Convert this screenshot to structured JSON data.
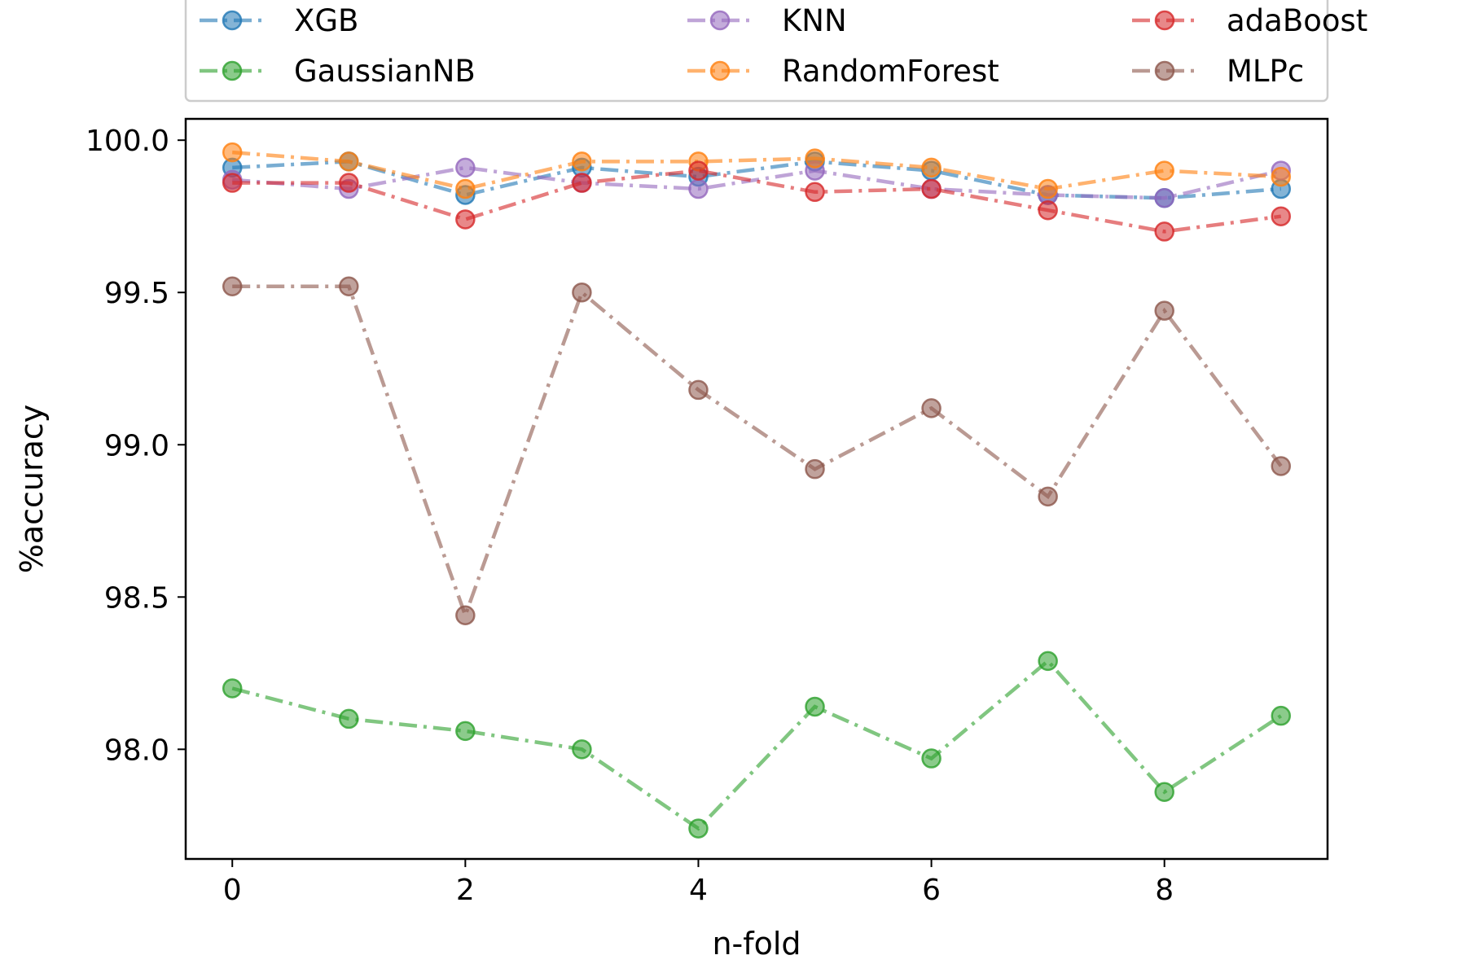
{
  "chart_data": {
    "type": "line",
    "title": "",
    "xlabel": "n-fold",
    "ylabel": "%accuracy",
    "xlim": [
      -0.4,
      9.4
    ],
    "ylim": [
      97.64,
      100.07
    ],
    "xticks": [
      0,
      2,
      4,
      6,
      8
    ],
    "yticks": [
      98.0,
      98.5,
      99.0,
      99.5,
      100.0
    ],
    "ytick_labels": [
      "98.0",
      "98.5",
      "99.0",
      "99.5",
      "100.0"
    ],
    "legend_position": "top",
    "grid": false,
    "x": [
      0,
      1,
      2,
      3,
      4,
      5,
      6,
      7,
      8,
      9
    ],
    "series": [
      {
        "name": "XGB",
        "color": "#1f77b4",
        "dash": "dashdot",
        "values": [
          99.91,
          99.93,
          99.82,
          99.91,
          99.88,
          99.93,
          99.9,
          99.82,
          99.81,
          99.84
        ]
      },
      {
        "name": "GaussianNB",
        "color": "#2ca02c",
        "dash": "dashdot",
        "values": [
          98.2,
          98.1,
          98.06,
          98.0,
          97.74,
          98.14,
          97.97,
          98.29,
          97.86,
          98.11
        ]
      },
      {
        "name": "KNN",
        "color": "#9467bd",
        "dash": "dashdot",
        "values": [
          99.87,
          99.84,
          99.91,
          99.86,
          99.84,
          99.9,
          99.84,
          99.82,
          99.81,
          99.9
        ]
      },
      {
        "name": "RandomForest",
        "color": "#ff7f0e",
        "dash": "dashdot",
        "values": [
          99.96,
          99.93,
          99.84,
          99.93,
          99.93,
          99.94,
          99.91,
          99.84,
          99.9,
          99.88
        ]
      },
      {
        "name": "adaBoost",
        "color": "#d62728",
        "dash": "dashdot",
        "values": [
          99.86,
          99.86,
          99.74,
          99.86,
          99.9,
          99.83,
          99.84,
          99.77,
          99.7,
          99.75
        ]
      },
      {
        "name": "MLPc",
        "color": "#8c564b",
        "dash": "dashdot",
        "values": [
          99.52,
          99.52,
          98.44,
          99.5,
          99.18,
          98.92,
          99.12,
          98.83,
          99.44,
          98.93
        ]
      }
    ]
  }
}
